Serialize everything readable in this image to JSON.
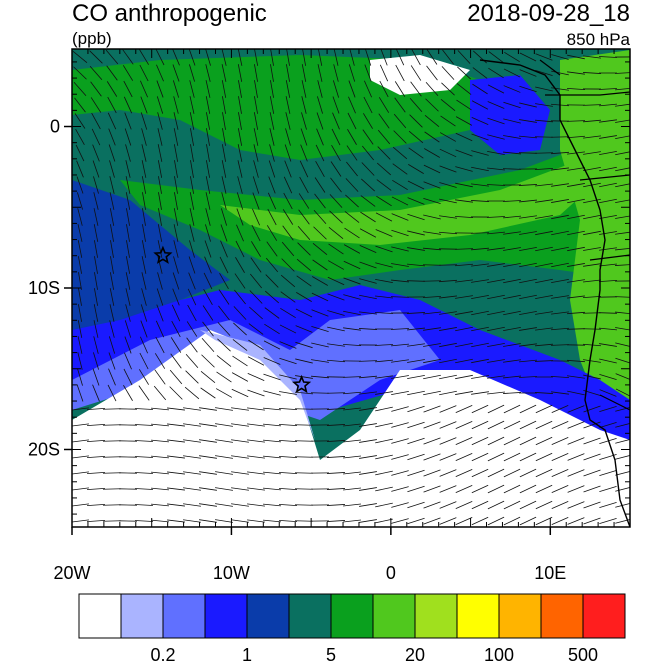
{
  "header": {
    "title": "CO anthropogenic",
    "datetime": "2018-09-28_18",
    "units": "(ppb)",
    "level": "850 hPa"
  },
  "map": {
    "lat_ticks": [
      {
        "value": 0,
        "label": "0"
      },
      {
        "value": -10,
        "label": "10S"
      },
      {
        "value": -20,
        "label": "20S"
      }
    ],
    "lon_ticks": [
      {
        "value": -20,
        "label": "20W"
      },
      {
        "value": -10,
        "label": "10W"
      },
      {
        "value": 0,
        "label": "0"
      },
      {
        "value": 10,
        "label": "10E"
      }
    ],
    "lon_range": [
      -20,
      15
    ],
    "lat_range": [
      -24.8,
      4.8
    ],
    "markers": [
      {
        "lon": -14.3,
        "lat": -8.0,
        "icon": "star-icon"
      },
      {
        "lon": -5.6,
        "lat": -16.0,
        "icon": "star-icon"
      }
    ]
  },
  "colorbar": {
    "colors": [
      "#ffffff",
      "#aab4ff",
      "#6070ff",
      "#1a1aff",
      "#0a3caa",
      "#0a7060",
      "#0aa01e",
      "#50c81e",
      "#a0e01e",
      "#ffff00",
      "#ffb400",
      "#ff6400",
      "#ff1e1e"
    ],
    "labels": [
      {
        "boundary": 2,
        "text": "0.2"
      },
      {
        "boundary": 4,
        "text": "1"
      },
      {
        "boundary": 6,
        "text": "5"
      },
      {
        "boundary": 8,
        "text": "20"
      },
      {
        "boundary": 10,
        "text": "100"
      },
      {
        "boundary": 12,
        "text": "500"
      }
    ]
  }
}
